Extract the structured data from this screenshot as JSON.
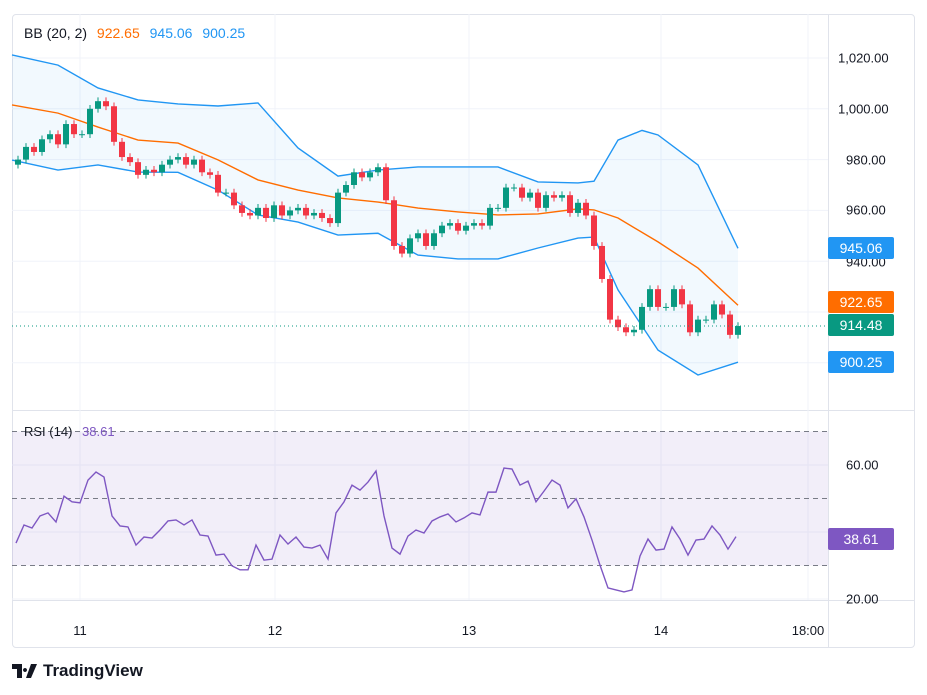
{
  "legend": {
    "bb_label": "BB (20, 2)",
    "bb_middle": "922.65",
    "bb_upper": "945.06",
    "bb_lower": "900.25",
    "rsi_label": "RSI (14)",
    "rsi_value": "38.61"
  },
  "colors": {
    "up": "#089981",
    "down": "#f23645",
    "bb_middle": "#ff6d00",
    "bb_band": "#2196f3",
    "rsi": "#7e57c2"
  },
  "price_axis": [
    "1,020.00",
    "1,000.00",
    "980.00",
    "960.00",
    "940.00"
  ],
  "rsi_axis": [
    "60.00",
    "20.00"
  ],
  "time_axis": [
    "11",
    "12",
    "13",
    "14",
    "18:00"
  ],
  "badges": {
    "upper": "945.06",
    "middle": "922.65",
    "last": "914.48",
    "lower": "900.25",
    "rsi": "38.61"
  },
  "brand": "TradingView",
  "chart_data": {
    "type": "candlestick",
    "interval": "1h",
    "first_open": 978,
    "closes": [
      980,
      985,
      983,
      988,
      990,
      986,
      994,
      990,
      990,
      1000,
      1003,
      1001,
      987,
      981,
      979,
      974,
      976,
      975,
      978,
      980,
      981,
      978,
      980,
      975,
      974,
      967,
      967,
      962,
      959,
      958,
      961,
      957,
      962,
      958,
      960,
      961,
      958,
      959,
      957,
      955,
      967,
      970,
      975,
      973,
      975,
      977,
      964,
      946,
      943,
      949,
      951,
      946,
      951,
      954,
      955,
      952,
      954,
      955,
      954,
      961,
      961,
      969,
      969,
      965,
      967,
      961,
      966,
      965,
      966,
      959,
      963,
      958,
      946,
      933,
      917,
      914,
      912,
      913,
      922,
      929,
      922,
      922,
      929,
      923,
      912,
      917,
      917,
      923,
      919,
      911,
      914.48
    ],
    "bb_upper": [
      [
        0,
        1021.2
      ],
      [
        5,
        1017.2
      ],
      [
        10,
        1008.2
      ],
      [
        15,
        1003.5
      ],
      [
        20,
        1001.9
      ],
      [
        25,
        1001.1
      ],
      [
        30,
        1002.3
      ],
      [
        35,
        984.6
      ],
      [
        40,
        973.5
      ],
      [
        45,
        975.9
      ],
      [
        50,
        977.1
      ],
      [
        55,
        977.1
      ],
      [
        60,
        977.1
      ],
      [
        65,
        971.2
      ],
      [
        70,
        970.8
      ],
      [
        72,
        971.5
      ],
      [
        75,
        987.7
      ],
      [
        78,
        991.5
      ],
      [
        80,
        989.7
      ],
      [
        85,
        977.9
      ],
      [
        90,
        945.06
      ]
    ],
    "bb_middle": [
      [
        0,
        1001.5
      ],
      [
        5,
        998.3
      ],
      [
        10,
        992.8
      ],
      [
        15,
        987.7
      ],
      [
        20,
        986.5
      ],
      [
        25,
        979.9
      ],
      [
        30,
        972
      ],
      [
        35,
        968
      ],
      [
        40,
        964.9
      ],
      [
        45,
        963.3
      ],
      [
        50,
        960.9
      ],
      [
        55,
        959.4
      ],
      [
        60,
        958.2
      ],
      [
        65,
        958.6
      ],
      [
        70,
        960.6
      ],
      [
        72,
        960.2
      ],
      [
        75,
        957
      ],
      [
        80,
        947.6
      ],
      [
        85,
        937.3
      ],
      [
        90,
        922.65
      ]
    ],
    "bb_lower": [
      [
        0,
        979.8
      ],
      [
        5,
        975.9
      ],
      [
        10,
        977.9
      ],
      [
        15,
        975.1
      ],
      [
        20,
        975
      ],
      [
        25,
        968
      ],
      [
        30,
        958.2
      ],
      [
        35,
        955.4
      ],
      [
        40,
        950.3
      ],
      [
        45,
        951
      ],
      [
        50,
        942.4
      ],
      [
        55,
        940.9
      ],
      [
        60,
        940.9
      ],
      [
        65,
        945.2
      ],
      [
        70,
        949.1
      ],
      [
        72,
        949.5
      ],
      [
        75,
        928.7
      ],
      [
        80,
        905
      ],
      [
        85,
        895.2
      ],
      [
        90,
        900.25
      ]
    ],
    "rsi": [
      36.7,
      42.1,
      41.2,
      44.8,
      45.7,
      43.0,
      50.7,
      49.0,
      48.7,
      55.5,
      57.9,
      56.4,
      44.8,
      41.8,
      41.5,
      36.1,
      38.5,
      38.2,
      40.6,
      43.3,
      43.6,
      42.1,
      43.6,
      39.1,
      38.8,
      33.1,
      33.4,
      29.9,
      28.7,
      28.7,
      36.1,
      31.6,
      31.9,
      39.1,
      36.4,
      38.5,
      35.5,
      35.2,
      36.1,
      31.9,
      45.7,
      49.0,
      54.0,
      52.5,
      54.9,
      58.2,
      44.8,
      35.2,
      33.4,
      38.8,
      40.6,
      39.7,
      43.3,
      44.5,
      45.4,
      43.0,
      44.2,
      45.7,
      45.1,
      51.9,
      51.9,
      59.1,
      58.8,
      54.0,
      55.2,
      49.0,
      52.2,
      55.5,
      54.0,
      47.2,
      49.9,
      44.5,
      37.6,
      30.1,
      23.3,
      22.7,
      22.1,
      22.7,
      32.8,
      37.9,
      34.6,
      34.9,
      41.5,
      37.9,
      33.1,
      37.6,
      37.9,
      41.8,
      39.1,
      34.9,
      38.61
    ],
    "price_ylim": [
      890,
      1025
    ],
    "rsi_ylim": [
      15,
      75
    ],
    "rsi_levels": [
      70,
      50,
      30
    ]
  }
}
